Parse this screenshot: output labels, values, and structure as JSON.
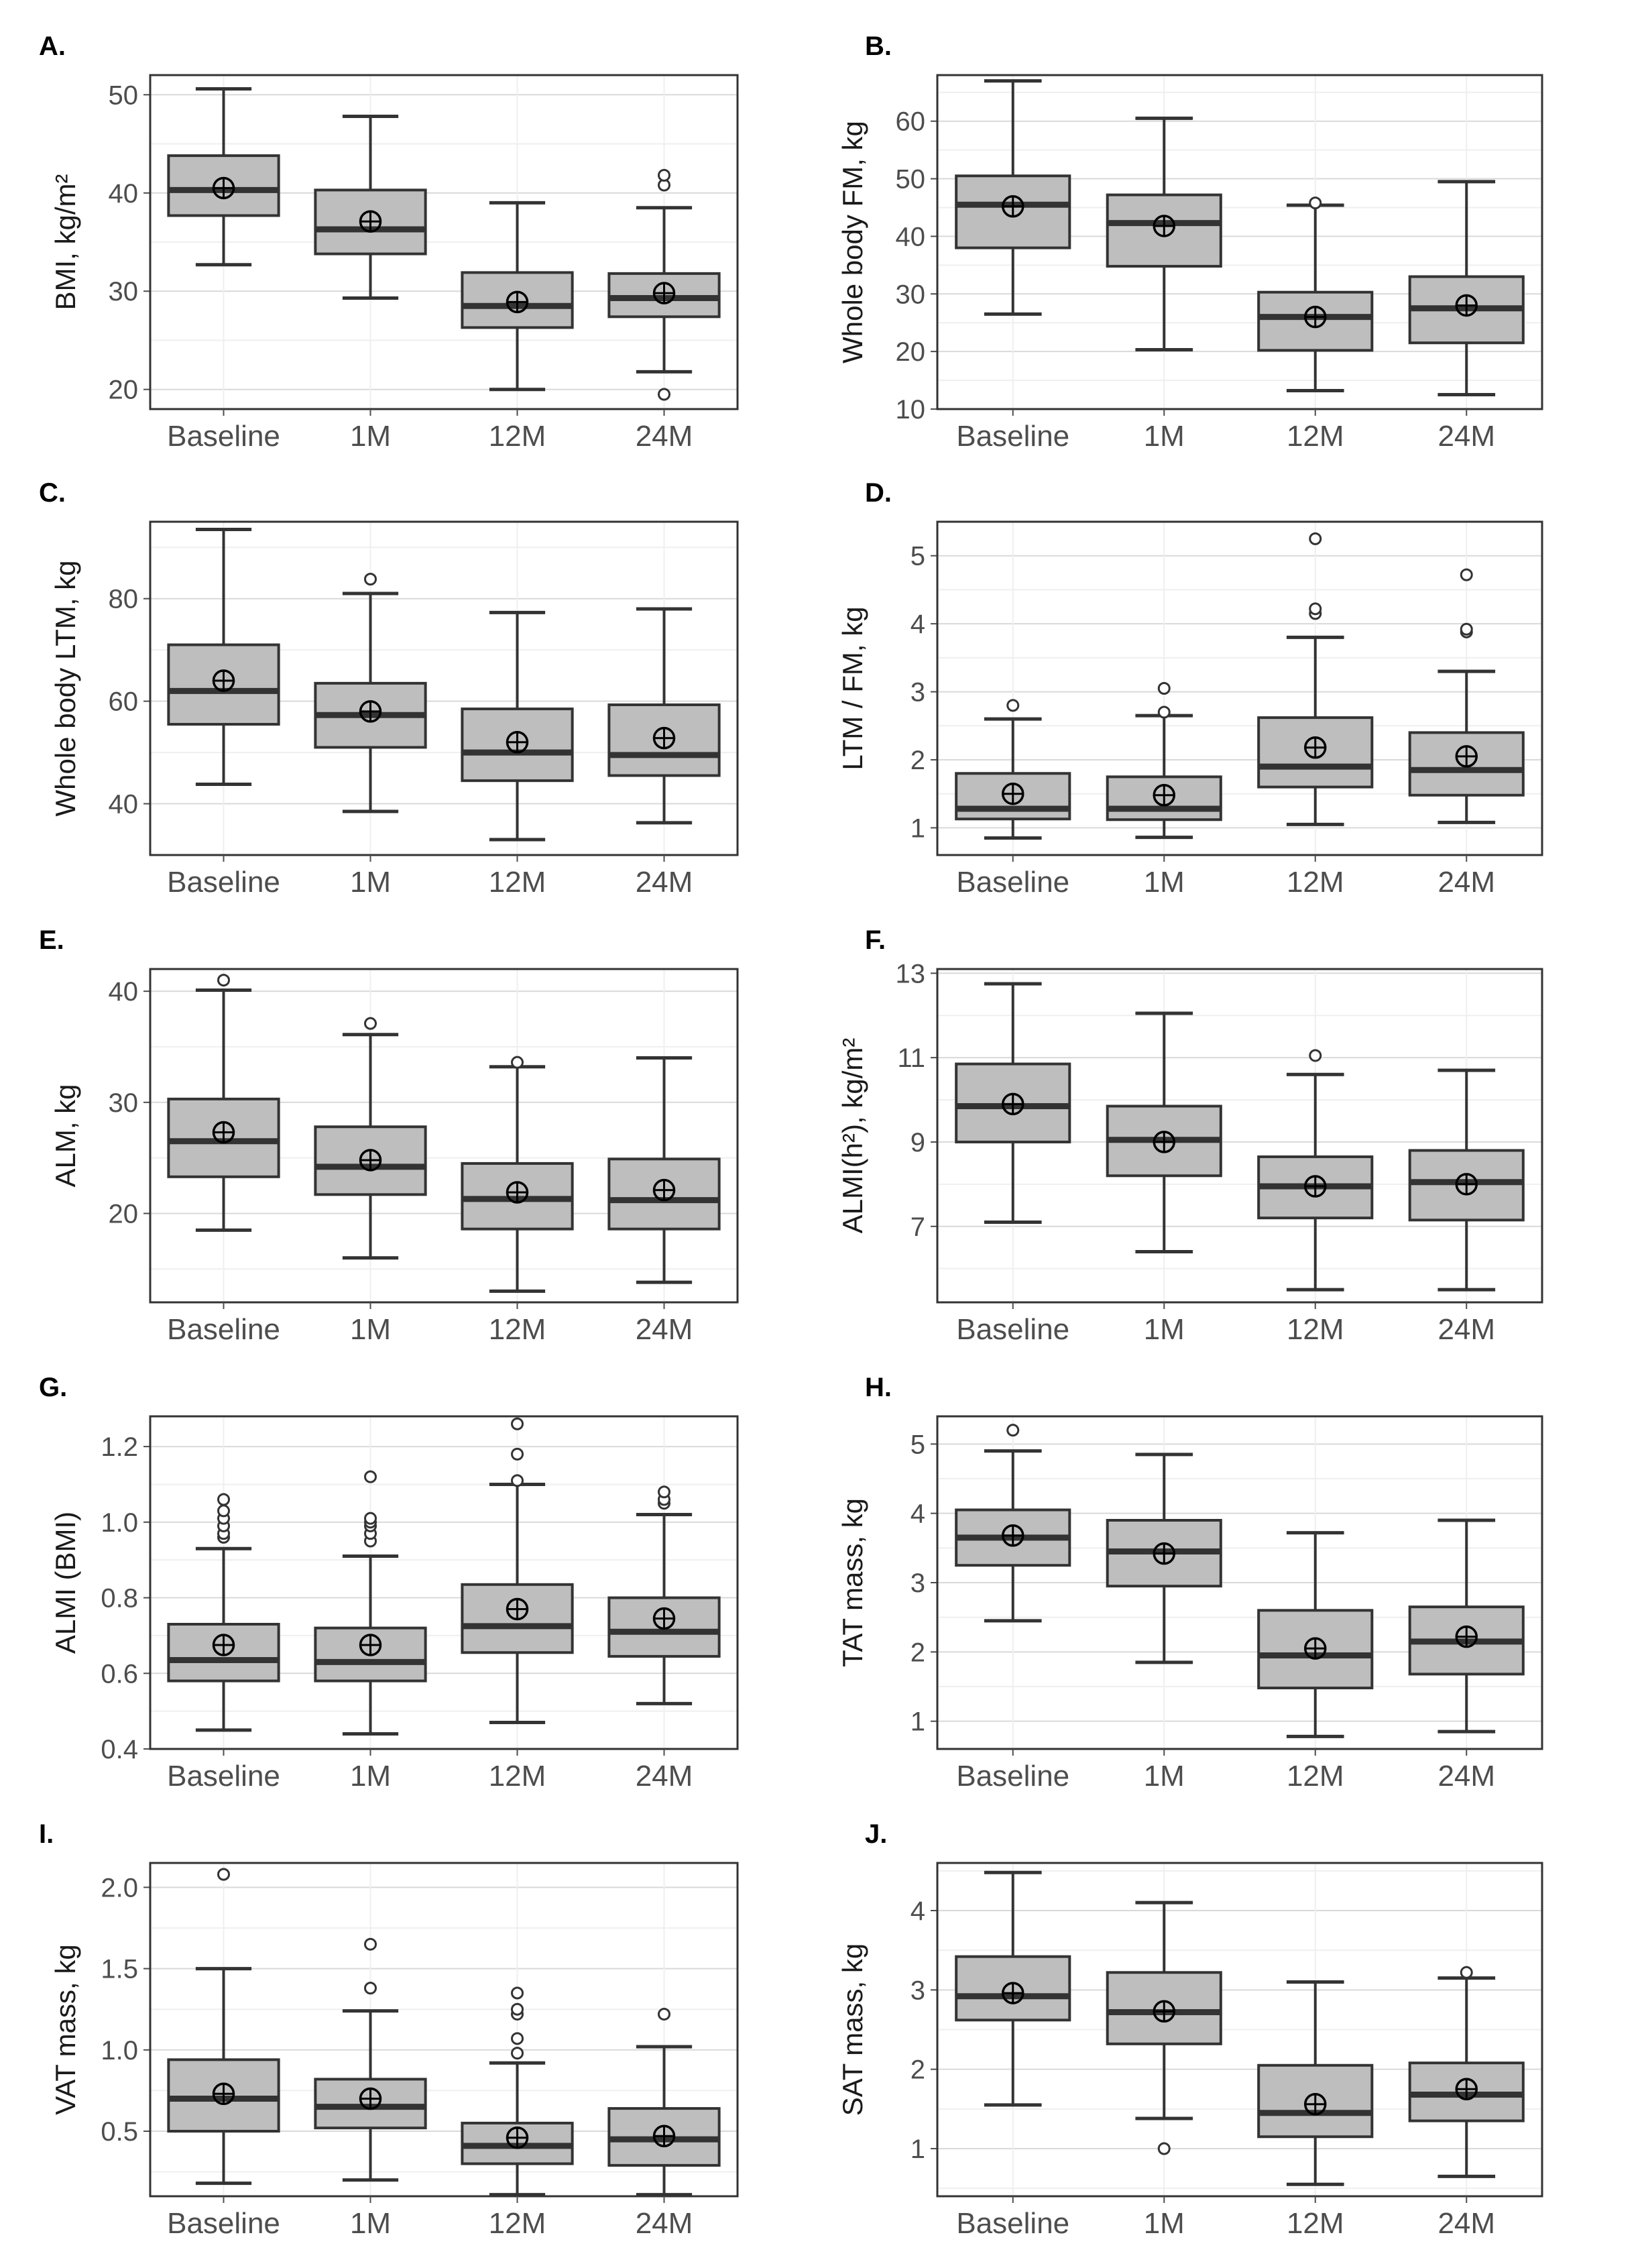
{
  "colors": {
    "box_fill": "#bebebe",
    "box_stroke": "#333333",
    "grid_major": "#d9d9d9",
    "grid_minor": "#efefef",
    "tick_label": "#4d4d4d",
    "axis_title": "#1a1a1a"
  },
  "chart_data": [
    {
      "panel": "A.",
      "type": "box",
      "ylabel": "BMI, kg/m²",
      "categories": [
        "Baseline",
        "1M",
        "12M",
        "24M"
      ],
      "ylim": [
        18,
        52
      ],
      "yticks": [
        20,
        30,
        40,
        50
      ],
      "boxes": [
        {
          "lower_whisker": 32.7,
          "q1": 37.7,
          "median": 40.3,
          "q3": 43.8,
          "upper_whisker": 50.6,
          "mean": 40.5,
          "outliers": []
        },
        {
          "lower_whisker": 29.3,
          "q1": 33.8,
          "median": 36.3,
          "q3": 40.3,
          "upper_whisker": 47.8,
          "mean": 37.1,
          "outliers": []
        },
        {
          "lower_whisker": 20.0,
          "q1": 26.3,
          "median": 28.5,
          "q3": 31.9,
          "upper_whisker": 39.0,
          "mean": 28.9,
          "outliers": []
        },
        {
          "lower_whisker": 21.8,
          "q1": 27.4,
          "median": 29.3,
          "q3": 31.8,
          "upper_whisker": 38.5,
          "mean": 29.8,
          "outliers": [
            19.5,
            40.8,
            41.8
          ]
        }
      ]
    },
    {
      "panel": "B.",
      "type": "box",
      "ylabel": "Whole body FM, kg",
      "categories": [
        "Baseline",
        "1M",
        "12M",
        "24M"
      ],
      "ylim": [
        10,
        68
      ],
      "yticks": [
        10,
        20,
        30,
        40,
        50,
        60
      ],
      "boxes": [
        {
          "lower_whisker": 26.5,
          "q1": 38.0,
          "median": 45.5,
          "q3": 50.5,
          "upper_whisker": 67.0,
          "mean": 45.2,
          "outliers": []
        },
        {
          "lower_whisker": 20.3,
          "q1": 34.8,
          "median": 42.3,
          "q3": 47.2,
          "upper_whisker": 60.5,
          "mean": 41.8,
          "outliers": []
        },
        {
          "lower_whisker": 13.2,
          "q1": 20.2,
          "median": 26.0,
          "q3": 30.3,
          "upper_whisker": 45.4,
          "mean": 26.0,
          "outliers": [
            45.8
          ]
        },
        {
          "lower_whisker": 12.5,
          "q1": 21.5,
          "median": 27.5,
          "q3": 33.0,
          "upper_whisker": 49.5,
          "mean": 28.0,
          "outliers": []
        }
      ]
    },
    {
      "panel": "C.",
      "type": "box",
      "ylabel": "Whole body LTM, kg",
      "categories": [
        "Baseline",
        "1M",
        "12M",
        "24M"
      ],
      "ylim": [
        30,
        95
      ],
      "yticks": [
        40,
        60,
        80
      ],
      "boxes": [
        {
          "lower_whisker": 43.8,
          "q1": 55.5,
          "median": 62.0,
          "q3": 71.0,
          "upper_whisker": 93.5,
          "mean": 64.0,
          "outliers": []
        },
        {
          "lower_whisker": 38.5,
          "q1": 51.0,
          "median": 57.3,
          "q3": 63.5,
          "upper_whisker": 81.0,
          "mean": 58.0,
          "outliers": [
            83.8
          ]
        },
        {
          "lower_whisker": 33.0,
          "q1": 44.5,
          "median": 50.0,
          "q3": 58.5,
          "upper_whisker": 77.3,
          "mean": 52.0,
          "outliers": []
        },
        {
          "lower_whisker": 36.3,
          "q1": 45.5,
          "median": 49.5,
          "q3": 59.3,
          "upper_whisker": 78.0,
          "mean": 52.8,
          "outliers": []
        }
      ]
    },
    {
      "panel": "D.",
      "type": "box",
      "ylabel": "LTM / FM, kg",
      "categories": [
        "Baseline",
        "1M",
        "12M",
        "24M"
      ],
      "ylim": [
        0.6,
        5.5
      ],
      "yticks": [
        1,
        2,
        3,
        4,
        5
      ],
      "boxes": [
        {
          "lower_whisker": 0.85,
          "q1": 1.13,
          "median": 1.28,
          "q3": 1.8,
          "upper_whisker": 2.6,
          "mean": 1.5,
          "outliers": [
            2.8
          ]
        },
        {
          "lower_whisker": 0.86,
          "q1": 1.12,
          "median": 1.28,
          "q3": 1.75,
          "upper_whisker": 2.65,
          "mean": 1.48,
          "outliers": [
            2.7,
            3.05
          ]
        },
        {
          "lower_whisker": 1.05,
          "q1": 1.6,
          "median": 1.9,
          "q3": 2.62,
          "upper_whisker": 3.8,
          "mean": 2.18,
          "outliers": [
            4.15,
            4.22,
            5.25
          ]
        },
        {
          "lower_whisker": 1.08,
          "q1": 1.48,
          "median": 1.85,
          "q3": 2.4,
          "upper_whisker": 3.3,
          "mean": 2.05,
          "outliers": [
            3.88,
            3.92,
            4.72
          ]
        }
      ]
    },
    {
      "panel": "E.",
      "type": "box",
      "ylabel": "ALM, kg",
      "categories": [
        "Baseline",
        "1M",
        "12M",
        "24M"
      ],
      "ylim": [
        12,
        42
      ],
      "yticks": [
        20,
        30,
        40
      ],
      "boxes": [
        {
          "lower_whisker": 18.5,
          "q1": 23.3,
          "median": 26.5,
          "q3": 30.3,
          "upper_whisker": 40.1,
          "mean": 27.3,
          "outliers": [
            41.0
          ]
        },
        {
          "lower_whisker": 16.0,
          "q1": 21.7,
          "median": 24.2,
          "q3": 27.8,
          "upper_whisker": 36.1,
          "mean": 24.8,
          "outliers": [
            37.1
          ]
        },
        {
          "lower_whisker": 13.0,
          "q1": 18.6,
          "median": 21.3,
          "q3": 24.5,
          "upper_whisker": 33.2,
          "mean": 21.9,
          "outliers": [
            33.6
          ]
        },
        {
          "lower_whisker": 13.8,
          "q1": 18.6,
          "median": 21.2,
          "q3": 24.9,
          "upper_whisker": 34.0,
          "mean": 22.1,
          "outliers": []
        }
      ]
    },
    {
      "panel": "F.",
      "type": "box",
      "ylabel": "ALMI(h²), kg/m²",
      "categories": [
        "Baseline",
        "1M",
        "12M",
        "24M"
      ],
      "ylim": [
        5.2,
        13.1
      ],
      "yticks": [
        7,
        9,
        11,
        13
      ],
      "boxes": [
        {
          "lower_whisker": 7.1,
          "q1": 9.0,
          "median": 9.85,
          "q3": 10.85,
          "upper_whisker": 12.75,
          "mean": 9.9,
          "outliers": []
        },
        {
          "lower_whisker": 6.4,
          "q1": 8.2,
          "median": 9.05,
          "q3": 9.85,
          "upper_whisker": 12.05,
          "mean": 9.0,
          "outliers": []
        },
        {
          "lower_whisker": 5.5,
          "q1": 7.2,
          "median": 7.95,
          "q3": 8.65,
          "upper_whisker": 10.6,
          "mean": 7.95,
          "outliers": [
            11.05
          ]
        },
        {
          "lower_whisker": 5.5,
          "q1": 7.15,
          "median": 8.05,
          "q3": 8.8,
          "upper_whisker": 10.7,
          "mean": 8.0,
          "outliers": []
        }
      ]
    },
    {
      "panel": "G.",
      "type": "box",
      "ylabel": "ALMI (BMI)",
      "categories": [
        "Baseline",
        "1M",
        "12M",
        "24M"
      ],
      "ylim": [
        0.4,
        1.28
      ],
      "yticks": [
        0.4,
        0.6,
        0.8,
        1.0,
        1.2
      ],
      "boxes": [
        {
          "lower_whisker": 0.45,
          "q1": 0.58,
          "median": 0.635,
          "q3": 0.73,
          "upper_whisker": 0.93,
          "mean": 0.675,
          "outliers": [
            0.96,
            0.97,
            0.99,
            1.01,
            1.03,
            1.06
          ]
        },
        {
          "lower_whisker": 0.44,
          "q1": 0.58,
          "median": 0.63,
          "q3": 0.72,
          "upper_whisker": 0.91,
          "mean": 0.675,
          "outliers": [
            0.95,
            0.97,
            0.99,
            1.0,
            1.01,
            1.12
          ]
        },
        {
          "lower_whisker": 0.47,
          "q1": 0.655,
          "median": 0.725,
          "q3": 0.835,
          "upper_whisker": 1.1,
          "mean": 0.77,
          "outliers": [
            1.11,
            1.18,
            1.26
          ]
        },
        {
          "lower_whisker": 0.52,
          "q1": 0.645,
          "median": 0.71,
          "q3": 0.8,
          "upper_whisker": 1.02,
          "mean": 0.745,
          "outliers": [
            1.05,
            1.06,
            1.08
          ]
        }
      ]
    },
    {
      "panel": "H.",
      "type": "box",
      "ylabel": "TAT mass, kg",
      "categories": [
        "Baseline",
        "1M",
        "12M",
        "24M"
      ],
      "ylim": [
        0.6,
        5.4
      ],
      "yticks": [
        1,
        2,
        3,
        4,
        5
      ],
      "boxes": [
        {
          "lower_whisker": 2.45,
          "q1": 3.25,
          "median": 3.65,
          "q3": 4.05,
          "upper_whisker": 4.9,
          "mean": 3.68,
          "outliers": [
            5.2
          ]
        },
        {
          "lower_whisker": 1.85,
          "q1": 2.95,
          "median": 3.45,
          "q3": 3.9,
          "upper_whisker": 4.85,
          "mean": 3.42,
          "outliers": []
        },
        {
          "lower_whisker": 0.78,
          "q1": 1.48,
          "median": 1.95,
          "q3": 2.6,
          "upper_whisker": 3.72,
          "mean": 2.05,
          "outliers": []
        },
        {
          "lower_whisker": 0.85,
          "q1": 1.68,
          "median": 2.15,
          "q3": 2.65,
          "upper_whisker": 3.9,
          "mean": 2.22,
          "outliers": []
        }
      ]
    },
    {
      "panel": "I.",
      "type": "box",
      "ylabel": "VAT mass, kg",
      "categories": [
        "Baseline",
        "1M",
        "12M",
        "24M"
      ],
      "ylim": [
        0.1,
        2.15
      ],
      "yticks": [
        0.5,
        1.0,
        1.5,
        2.0
      ],
      "boxes": [
        {
          "lower_whisker": 0.18,
          "q1": 0.5,
          "median": 0.7,
          "q3": 0.94,
          "upper_whisker": 1.5,
          "mean": 0.73,
          "outliers": [
            2.08
          ]
        },
        {
          "lower_whisker": 0.2,
          "q1": 0.52,
          "median": 0.65,
          "q3": 0.82,
          "upper_whisker": 1.24,
          "mean": 0.7,
          "outliers": [
            1.38,
            1.65
          ]
        },
        {
          "lower_whisker": 0.11,
          "q1": 0.3,
          "median": 0.41,
          "q3": 0.55,
          "upper_whisker": 0.92,
          "mean": 0.46,
          "outliers": [
            0.98,
            1.07,
            1.22,
            1.25,
            1.35
          ]
        },
        {
          "lower_whisker": 0.11,
          "q1": 0.29,
          "median": 0.45,
          "q3": 0.64,
          "upper_whisker": 1.02,
          "mean": 0.47,
          "outliers": [
            1.22
          ]
        }
      ]
    },
    {
      "panel": "J.",
      "type": "box",
      "ylabel": "SAT mass, kg",
      "categories": [
        "Baseline",
        "1M",
        "12M",
        "24M"
      ],
      "ylim": [
        0.4,
        4.6
      ],
      "yticks": [
        1,
        2,
        3,
        4
      ],
      "boxes": [
        {
          "lower_whisker": 1.55,
          "q1": 2.62,
          "median": 2.92,
          "q3": 3.42,
          "upper_whisker": 4.48,
          "mean": 2.96,
          "outliers": []
        },
        {
          "lower_whisker": 1.38,
          "q1": 2.32,
          "median": 2.72,
          "q3": 3.22,
          "upper_whisker": 4.1,
          "mean": 2.73,
          "outliers": [
            1.0
          ]
        },
        {
          "lower_whisker": 0.55,
          "q1": 1.15,
          "median": 1.45,
          "q3": 2.05,
          "upper_whisker": 3.1,
          "mean": 1.56,
          "outliers": []
        },
        {
          "lower_whisker": 0.65,
          "q1": 1.35,
          "median": 1.68,
          "q3": 2.08,
          "upper_whisker": 3.15,
          "mean": 1.75,
          "outliers": [
            3.22
          ]
        }
      ]
    }
  ]
}
